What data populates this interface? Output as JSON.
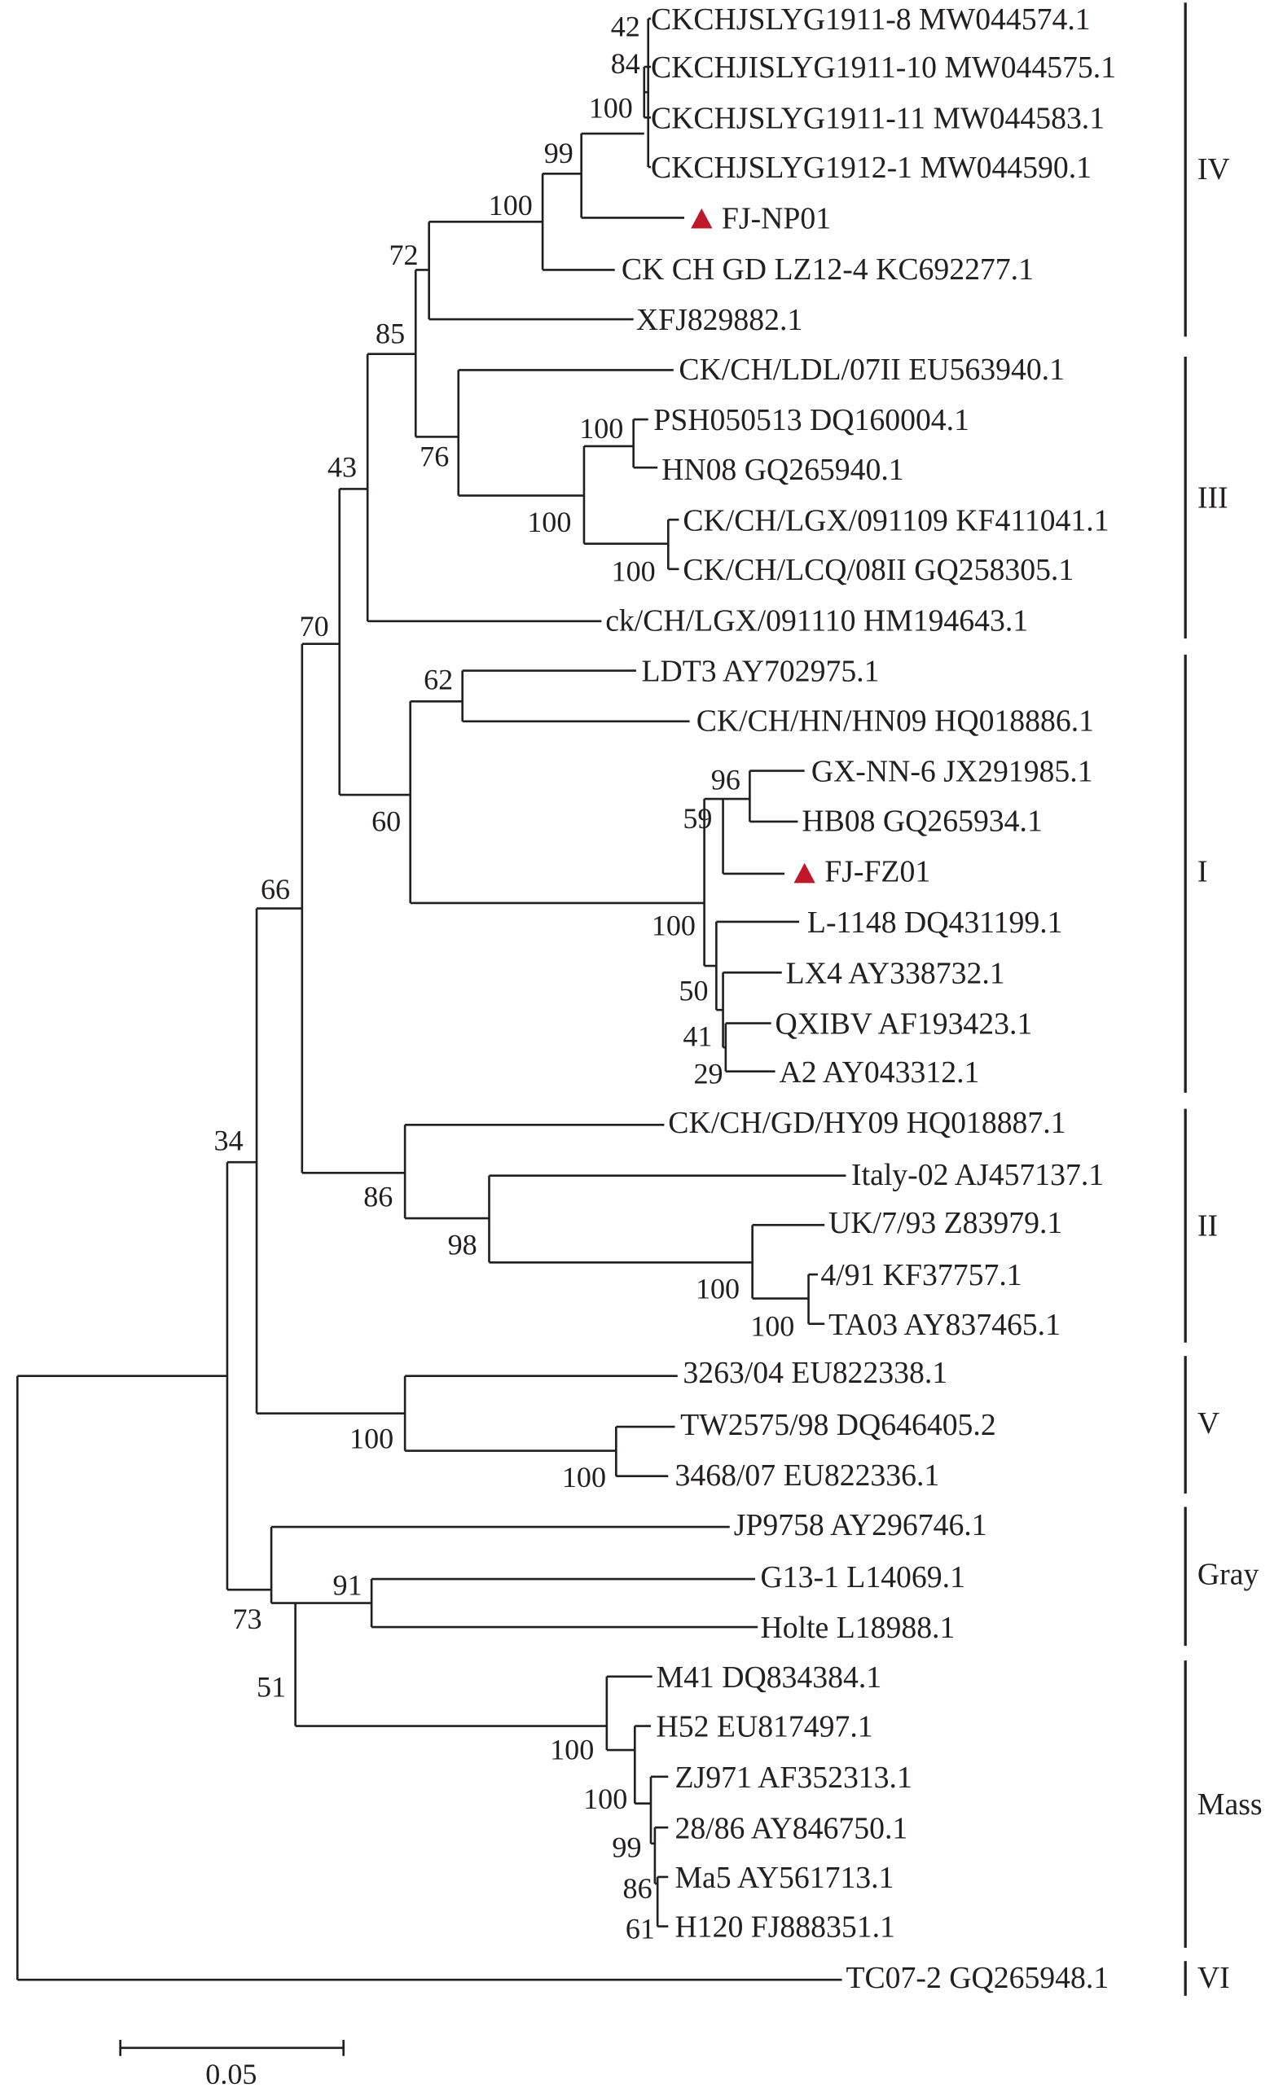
{
  "leaves": [
    "CKCHJSLYG1911-8 MW044574.1",
    "CKCHJISLYG1911-10 MW044575.1",
    "CKCHJSLYG1911-11 MW044583.1",
    "CKCHJSLYG1912-1 MW044590.1",
    "FJ-NP01",
    "CK CH GD LZ12-4 KC692277.1",
    "XFJ829882.1",
    "CK/CH/LDL/07II EU563940.1",
    "PSH050513 DQ160004.1",
    "HN08 GQ265940.1",
    "CK/CH/LGX/091109 KF411041.1",
    "CK/CH/LCQ/08II GQ258305.1",
    "ck/CH/LGX/091110 HM194643.1",
    "LDT3 AY702975.1",
    "CK/CH/HN/HN09 HQ018886.1",
    "GX-NN-6 JX291985.1",
    "HB08 GQ265934.1",
    "FJ-FZ01",
    "L-1148 DQ431199.1",
    "LX4 AY338732.1",
    "QXIBV AF193423.1",
    "A2 AY043312.1",
    "CK/CH/GD/HY09 HQ018887.1",
    "Italy-02 AJ457137.1",
    "UK/7/93 Z83979.1",
    "4/91 KF37757.1",
    "TA03 AY837465.1",
    "3263/04 EU822338.1",
    "TW2575/98 DQ646405.2",
    "3468/07 EU822336.1",
    "JP9758 AY296746.1",
    "G13-1 L14069.1",
    "Holte L18988.1",
    "M41 DQ834384.1",
    "H52 EU817497.1",
    "ZJ971 AF352313.1",
    "28/86 AY846750.1",
    "Ma5 AY561713.1",
    "H120 FJ888351.1",
    "TC07-2 GQ265948.1"
  ],
  "bootstrap": [
    "42",
    "84",
    "100",
    "99",
    "100",
    "72",
    "85",
    "76",
    "100",
    "100",
    "100",
    "43",
    "70",
    "62",
    "60",
    "96",
    "59",
    "100",
    "50",
    "41",
    "29",
    "66",
    "86",
    "98",
    "100",
    "100",
    "34",
    "100",
    "100",
    "91",
    "73",
    "51",
    "100",
    "100",
    "99",
    "86",
    "61"
  ],
  "clades": [
    "IV",
    "III",
    "I",
    "II",
    "V",
    "Gray",
    "Mass",
    "VI"
  ],
  "scale_bar": "0.05",
  "marker_color": "#c0182a",
  "marker_icon": "triangle-up"
}
